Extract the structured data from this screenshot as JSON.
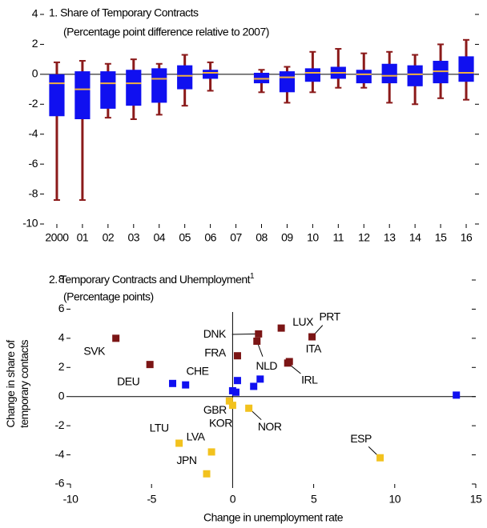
{
  "chart_data": [
    {
      "type": "box",
      "title": "1. Share of Temporary Contracts",
      "subtitle": "(Percentage point difference relative to 2007)",
      "categories": [
        "2000",
        "01",
        "02",
        "03",
        "04",
        "05",
        "06",
        "07",
        "08",
        "09",
        "10",
        "11",
        "12",
        "13",
        "14",
        "15",
        "16"
      ],
      "low": [
        -8.4,
        -8.4,
        -2.9,
        -3.0,
        -2.7,
        -2.1,
        -1.1,
        null,
        -1.2,
        -1.9,
        -1.2,
        -0.9,
        -0.9,
        -1.9,
        -2.0,
        -1.6,
        -1.7
      ],
      "q1": [
        -2.8,
        -3.0,
        -2.3,
        -2.1,
        -1.9,
        -1.0,
        -0.3,
        null,
        -0.6,
        -1.2,
        -0.5,
        -0.3,
        -0.6,
        -0.6,
        -0.8,
        -0.6,
        -0.5
      ],
      "median": [
        -0.6,
        -1.0,
        -0.6,
        -0.6,
        -0.3,
        -0.1,
        0.1,
        null,
        -0.3,
        -0.2,
        0.1,
        0.1,
        0.0,
        -0.1,
        0.0,
        0.2,
        0.1
      ],
      "q3": [
        0.0,
        0.2,
        0.2,
        0.3,
        0.4,
        0.6,
        0.3,
        null,
        0.1,
        0.2,
        0.4,
        0.5,
        0.3,
        0.7,
        0.6,
        0.9,
        1.2
      ],
      "high": [
        0.8,
        0.9,
        0.7,
        1.0,
        0.7,
        1.3,
        0.8,
        null,
        0.3,
        0.5,
        1.5,
        1.7,
        1.4,
        1.5,
        1.3,
        2.0,
        2.3
      ],
      "box_color": "#1010f0",
      "whisker_color": "#8b1a1a",
      "median_color": "#f0b040",
      "ylim": [
        -10,
        4
      ],
      "yticks": [
        -10,
        -8,
        -6,
        -4,
        -2,
        0,
        2,
        4
      ]
    },
    {
      "type": "scatter",
      "title": "2. Temporary Contracts and Uhemployment",
      "footnote_mark": "1",
      "subtitle": "(Percentage points)",
      "xlabel": "Change in unemployment rate",
      "ylabel": [
        "Change in share of",
        "temporary contacts"
      ],
      "labels": [
        "SVK",
        "DEU",
        "DNK",
        "FRA",
        "NLD",
        "LUX",
        "PRT",
        "ITA",
        "IRL",
        "CHE",
        null,
        null,
        null,
        null,
        null,
        null,
        null,
        "GBR",
        "KOR",
        "NOR",
        "LTU",
        "LVA",
        "JPN",
        "ESP"
      ],
      "x": [
        -7.2,
        -5.1,
        1.6,
        0.3,
        1.5,
        3.0,
        4.9,
        3.5,
        3.4,
        0.3,
        -3.7,
        -2.9,
        0.0,
        0.2,
        1.3,
        1.7,
        13.8,
        -0.2,
        0.0,
        1.0,
        -3.3,
        -1.3,
        -1.6,
        9.1
      ],
      "values": [
        4.0,
        2.2,
        4.3,
        2.8,
        3.8,
        4.7,
        4.1,
        2.4,
        2.3,
        1.1,
        0.9,
        0.8,
        0.4,
        0.3,
        0.7,
        1.2,
        0.1,
        -0.3,
        -0.6,
        -0.8,
        -3.2,
        -3.8,
        -5.3,
        -4.2
      ],
      "colors": [
        "#7b1515",
        "#7b1515",
        "#7b1515",
        "#7b1515",
        "#7b1515",
        "#7b1515",
        "#7b1515",
        "#7b1515",
        "#7b1515",
        "#1010f0",
        "#1010f0",
        "#1010f0",
        "#1010f0",
        "#1010f0",
        "#1010f0",
        "#1010f0",
        "#1010f0",
        "#f2c21e",
        "#f2c21e",
        "#f2c21e",
        "#f2c21e",
        "#f2c21e",
        "#f2c21e",
        "#f2c21e"
      ],
      "xlim": [
        -10,
        15
      ],
      "xticks": [
        -10,
        -5,
        0,
        5,
        10,
        15
      ],
      "ylim": [
        -6,
        8
      ],
      "yticks": [
        -6,
        -4,
        -2,
        0,
        2,
        4,
        6,
        8
      ]
    }
  ]
}
